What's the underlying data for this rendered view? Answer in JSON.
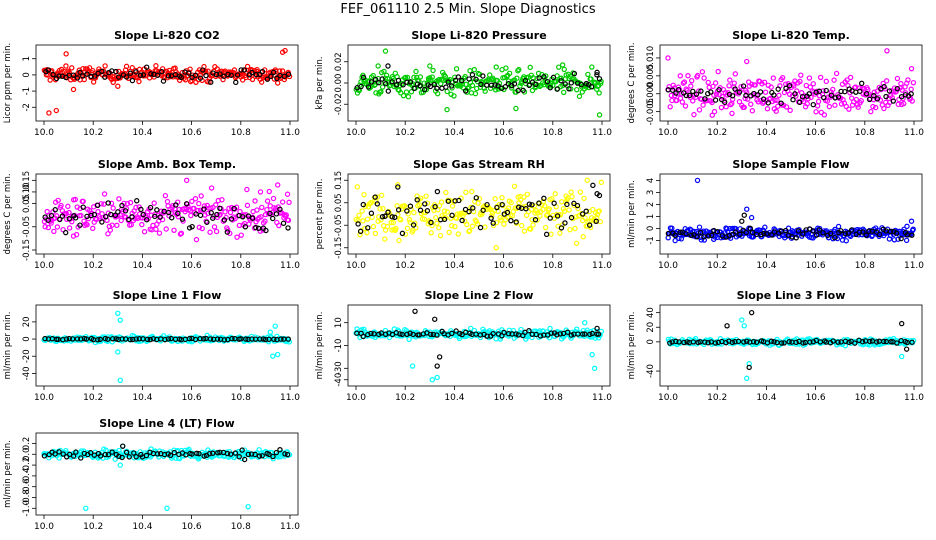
{
  "page_title": "FEF_061110  2.5 Min. Slope Diagnostics",
  "chart_data": [
    {
      "type": "scatter",
      "title": "Slope Li-820 CO2",
      "ylabel": "Licor ppm per min.",
      "xlim": [
        10.0,
        11.0
      ],
      "ylim": [
        -2.6,
        1.6
      ],
      "xticks": [
        "10.0",
        "10.2",
        "10.4",
        "10.6",
        "10.8",
        "11.0"
      ],
      "yticks": [
        "-2",
        "-1",
        "0",
        "1"
      ],
      "ytick_values": [
        -2,
        -1,
        0,
        1
      ],
      "series": [
        {
          "name": "primary",
          "color": "#ff0000",
          "center": 0.05,
          "spread": 0.22,
          "outliers": [
            [
              10.02,
              -2.35
            ],
            [
              10.05,
              -2.2
            ],
            [
              10.09,
              1.3
            ],
            [
              10.12,
              -0.9
            ],
            [
              10.3,
              -0.7
            ],
            [
              10.97,
              1.4
            ],
            [
              10.98,
              1.5
            ],
            [
              10.95,
              -0.5
            ]
          ]
        },
        {
          "name": "overlay",
          "color": "#000000",
          "center": 0.0,
          "spread": 0.18,
          "outliers": []
        }
      ]
    },
    {
      "type": "scatter",
      "title": "Slope Li-820 Pressure",
      "ylabel": "kPa per min.",
      "xlim": [
        10.0,
        11.0
      ],
      "ylim": [
        -0.032,
        0.032
      ],
      "xticks": [
        "10.0",
        "10.2",
        "10.4",
        "10.6",
        "10.8",
        "11.0"
      ],
      "yticks": [
        "-0.02",
        "0.00",
        "0.02"
      ],
      "ytick_values": [
        -0.02,
        0,
        0.02
      ],
      "series": [
        {
          "name": "primary",
          "color": "#00cc00",
          "center": 0.0,
          "spread": 0.006,
          "outliers": [
            [
              10.12,
              0.03
            ],
            [
              10.09,
              0.016
            ],
            [
              10.37,
              -0.025
            ],
            [
              10.65,
              -0.024
            ],
            [
              10.99,
              -0.03
            ],
            [
              10.3,
              0.016
            ],
            [
              10.57,
              0.015
            ],
            [
              10.84,
              0.017
            ]
          ]
        },
        {
          "name": "overlay",
          "color": "#000000",
          "center": 0.0,
          "spread": 0.004,
          "outliers": [
            [
              10.13,
              0.016
            ],
            [
              10.98,
              0.01
            ]
          ]
        }
      ]
    },
    {
      "type": "scatter",
      "title": "Slope Li-820 Temp.",
      "ylabel": "degrees C per min.",
      "xlim": [
        10.0,
        11.0
      ],
      "ylim": [
        -0.0065,
        0.0125
      ],
      "xticks": [
        "10.0",
        "10.2",
        "10.4",
        "10.6",
        "10.8",
        "11.0"
      ],
      "yticks": [
        "-0.005",
        "0.000",
        "0.005",
        "0.010"
      ],
      "ytick_values": [
        -0.005,
        0,
        0.005,
        0.01
      ],
      "series": [
        {
          "name": "primary",
          "color": "#ff00ff",
          "center": 0.0,
          "spread": 0.0025,
          "outliers": [
            [
              10.18,
              -0.006
            ],
            [
              10.26,
              -0.0055
            ],
            [
              10.32,
              0.009
            ],
            [
              10.89,
              0.012
            ],
            [
              10.95,
              -0.003
            ],
            [
              10.99,
              0.007
            ],
            [
              10.0,
              0.01
            ],
            [
              10.05,
              0.005
            ]
          ]
        },
        {
          "name": "overlay",
          "color": "#000000",
          "center": 0.0,
          "spread": 0.0015,
          "outliers": []
        }
      ]
    },
    {
      "type": "scatter",
      "title": "Slope Amb. Box Temp.",
      "ylabel": "degrees C per min.",
      "xlim": [
        10.0,
        11.0
      ],
      "ylim": [
        -0.15,
        0.16
      ],
      "xticks": [
        "10.0",
        "10.2",
        "10.4",
        "10.6",
        "10.8",
        "11.0"
      ],
      "yticks": [
        "-0.15",
        "-0.05",
        "0.05",
        "0.10",
        "0.15"
      ],
      "ytick_values": [
        -0.15,
        -0.05,
        0.05,
        0.1,
        0.15
      ],
      "series": [
        {
          "name": "primary",
          "color": "#ff00ff",
          "center": 0.0,
          "spread": 0.04,
          "outliers": [
            [
              10.58,
              0.15
            ],
            [
              10.88,
              0.1
            ],
            [
              10.95,
              0.13
            ],
            [
              10.99,
              0.09
            ],
            [
              10.12,
              -0.09
            ],
            [
              10.04,
              -0.07
            ]
          ]
        },
        {
          "name": "overlay",
          "color": "#000000",
          "center": 0.0,
          "spread": 0.03,
          "outliers": []
        }
      ]
    },
    {
      "type": "scatter",
      "title": "Slope Gas Stream RH",
      "ylabel": "percent per min.",
      "xlim": [
        10.0,
        11.0
      ],
      "ylim": [
        -0.16,
        0.16
      ],
      "xticks": [
        "10.0",
        "10.2",
        "10.4",
        "10.6",
        "10.8",
        "11.0"
      ],
      "yticks": [
        "-0.15",
        "-0.05",
        "0.05",
        "0.15"
      ],
      "ytick_values": [
        -0.15,
        -0.05,
        0.05,
        0.15
      ],
      "series": [
        {
          "name": "primary",
          "color": "#ffff00",
          "center": 0.0,
          "spread": 0.05,
          "outliers": [
            [
              10.57,
              -0.15
            ],
            [
              10.94,
              0.15
            ],
            [
              10.17,
              0.13
            ]
          ]
        },
        {
          "name": "overlay",
          "color": "#000000",
          "center": 0.0,
          "spread": 0.045,
          "outliers": [
            [
              10.17,
              0.12
            ],
            [
              10.98,
              0.09
            ]
          ]
        }
      ]
    },
    {
      "type": "scatter",
      "title": "Slope Sample Flow",
      "ylabel": "ml/min per min.",
      "xlim": [
        10.0,
        11.0
      ],
      "ylim": [
        -1.8,
        4.2
      ],
      "xticks": [
        "10.0",
        "10.2",
        "10.4",
        "10.6",
        "10.8",
        "11.0"
      ],
      "yticks": [
        "-1",
        "0",
        "1",
        "2",
        "3",
        "4"
      ],
      "ytick_values": [
        -1,
        0,
        1,
        2,
        3,
        4
      ],
      "series": [
        {
          "name": "primary",
          "color": "#0000ff",
          "center": -0.4,
          "spread": 0.25,
          "outliers": [
            [
              10.12,
              4.0
            ],
            [
              10.32,
              1.6
            ],
            [
              10.34,
              0.9
            ],
            [
              10.99,
              0.6
            ],
            [
              10.97,
              -1.0
            ]
          ]
        },
        {
          "name": "overlay",
          "color": "#000000",
          "center": -0.4,
          "spread": 0.2,
          "outliers": [
            [
              10.31,
              1.1
            ],
            [
              10.3,
              0.6
            ]
          ]
        }
      ]
    },
    {
      "type": "scatter",
      "title": "Slope Line 1 Flow",
      "ylabel": "ml/min per min.",
      "xlim": [
        10.0,
        11.0
      ],
      "ylim": [
        -50,
        35
      ],
      "xticks": [
        "10.0",
        "10.2",
        "10.4",
        "10.6",
        "10.8",
        "11.0"
      ],
      "yticks": [
        "-40",
        "-20",
        "0",
        "20"
      ],
      "ytick_values": [
        -40,
        -20,
        0,
        20
      ],
      "series": [
        {
          "name": "primary",
          "color": "#00ffff",
          "center": 0.0,
          "spread": 1.5,
          "outliers": [
            [
              10.3,
              30
            ],
            [
              10.31,
              22
            ],
            [
              10.3,
              -15
            ],
            [
              10.31,
              -48
            ],
            [
              10.93,
              -20
            ],
            [
              10.94,
              15
            ],
            [
              10.95,
              -18
            ],
            [
              10.92,
              8
            ]
          ]
        },
        {
          "name": "overlay",
          "color": "#000000",
          "center": 0.0,
          "spread": 0.5,
          "outliers": []
        }
      ]
    },
    {
      "type": "scatter",
      "title": "Slope Line 2 Flow",
      "ylabel": "ml/min per min.",
      "xlim": [
        10.0,
        11.0
      ],
      "ylim": [
        -42,
        22
      ],
      "xticks": [
        "10.0",
        "10.2",
        "10.4",
        "10.6",
        "10.8",
        "11.0"
      ],
      "yticks": [
        "-40",
        "-30",
        "-10",
        "10"
      ],
      "ytick_values": [
        -40,
        -30,
        -10,
        10
      ],
      "series": [
        {
          "name": "primary",
          "color": "#00ffff",
          "center": 0.0,
          "spread": 2.0,
          "outliers": [
            [
              10.23,
              -28
            ],
            [
              10.31,
              -40
            ],
            [
              10.33,
              -38
            ],
            [
              10.97,
              -30
            ],
            [
              10.96,
              -18
            ],
            [
              10.93,
              10
            ]
          ]
        },
        {
          "name": "overlay",
          "color": "#000000",
          "center": 0.0,
          "spread": 1.0,
          "outliers": [
            [
              10.24,
              20
            ],
            [
              10.32,
              13
            ],
            [
              10.34,
              -20
            ],
            [
              10.33,
              -28
            ],
            [
              10.98,
              5
            ]
          ]
        }
      ]
    },
    {
      "type": "scatter",
      "title": "Slope Line 3 Flow",
      "ylabel": "ml/min per min.",
      "xlim": [
        10.0,
        11.0
      ],
      "ylim": [
        -55,
        45
      ],
      "xticks": [
        "10.0",
        "10.2",
        "10.4",
        "10.6",
        "10.8",
        "11.0"
      ],
      "yticks": [
        "-40",
        "0",
        "20",
        "40"
      ],
      "ytick_values": [
        -40,
        0,
        20,
        40
      ],
      "series": [
        {
          "name": "primary",
          "color": "#00ffff",
          "center": 0.0,
          "spread": 2.0,
          "outliers": [
            [
              10.3,
              30
            ],
            [
              10.32,
              -50
            ],
            [
              10.33,
              -30
            ],
            [
              10.95,
              -20
            ],
            [
              10.31,
              22
            ]
          ]
        },
        {
          "name": "overlay",
          "color": "#000000",
          "center": 0.0,
          "spread": 1.0,
          "outliers": [
            [
              10.24,
              22
            ],
            [
              10.33,
              -35
            ],
            [
              10.34,
              40
            ],
            [
              10.95,
              25
            ],
            [
              10.97,
              -10
            ]
          ]
        }
      ]
    },
    {
      "type": "scatter",
      "title": "Slope Line 4 (LT) Flow",
      "ylabel": "ml/min per min.",
      "xlim": [
        10.0,
        11.0
      ],
      "ylim": [
        -1.05,
        0.32
      ],
      "xticks": [
        "10.0",
        "10.2",
        "10.4",
        "10.6",
        "10.8",
        "11.0"
      ],
      "yticks": [
        "-1.0",
        "-0.8",
        "-0.6",
        "-0.4",
        "-0.2",
        "0.0",
        "0.2"
      ],
      "ytick_values": [
        -1,
        -0.8,
        -0.6,
        -0.4,
        -0.2,
        0,
        0.2
      ],
      "series": [
        {
          "name": "primary",
          "color": "#00ffff",
          "center": 0.0,
          "spread": 0.04,
          "outliers": [
            [
              10.17,
              -1.0
            ],
            [
              10.5,
              -1.0
            ],
            [
              10.83,
              -0.97
            ],
            [
              10.31,
              -0.2
            ],
            [
              10.32,
              0.15
            ]
          ]
        },
        {
          "name": "overlay",
          "color": "#000000",
          "center": 0.0,
          "spread": 0.035,
          "outliers": [
            [
              10.32,
              0.15
            ]
          ]
        }
      ]
    }
  ]
}
